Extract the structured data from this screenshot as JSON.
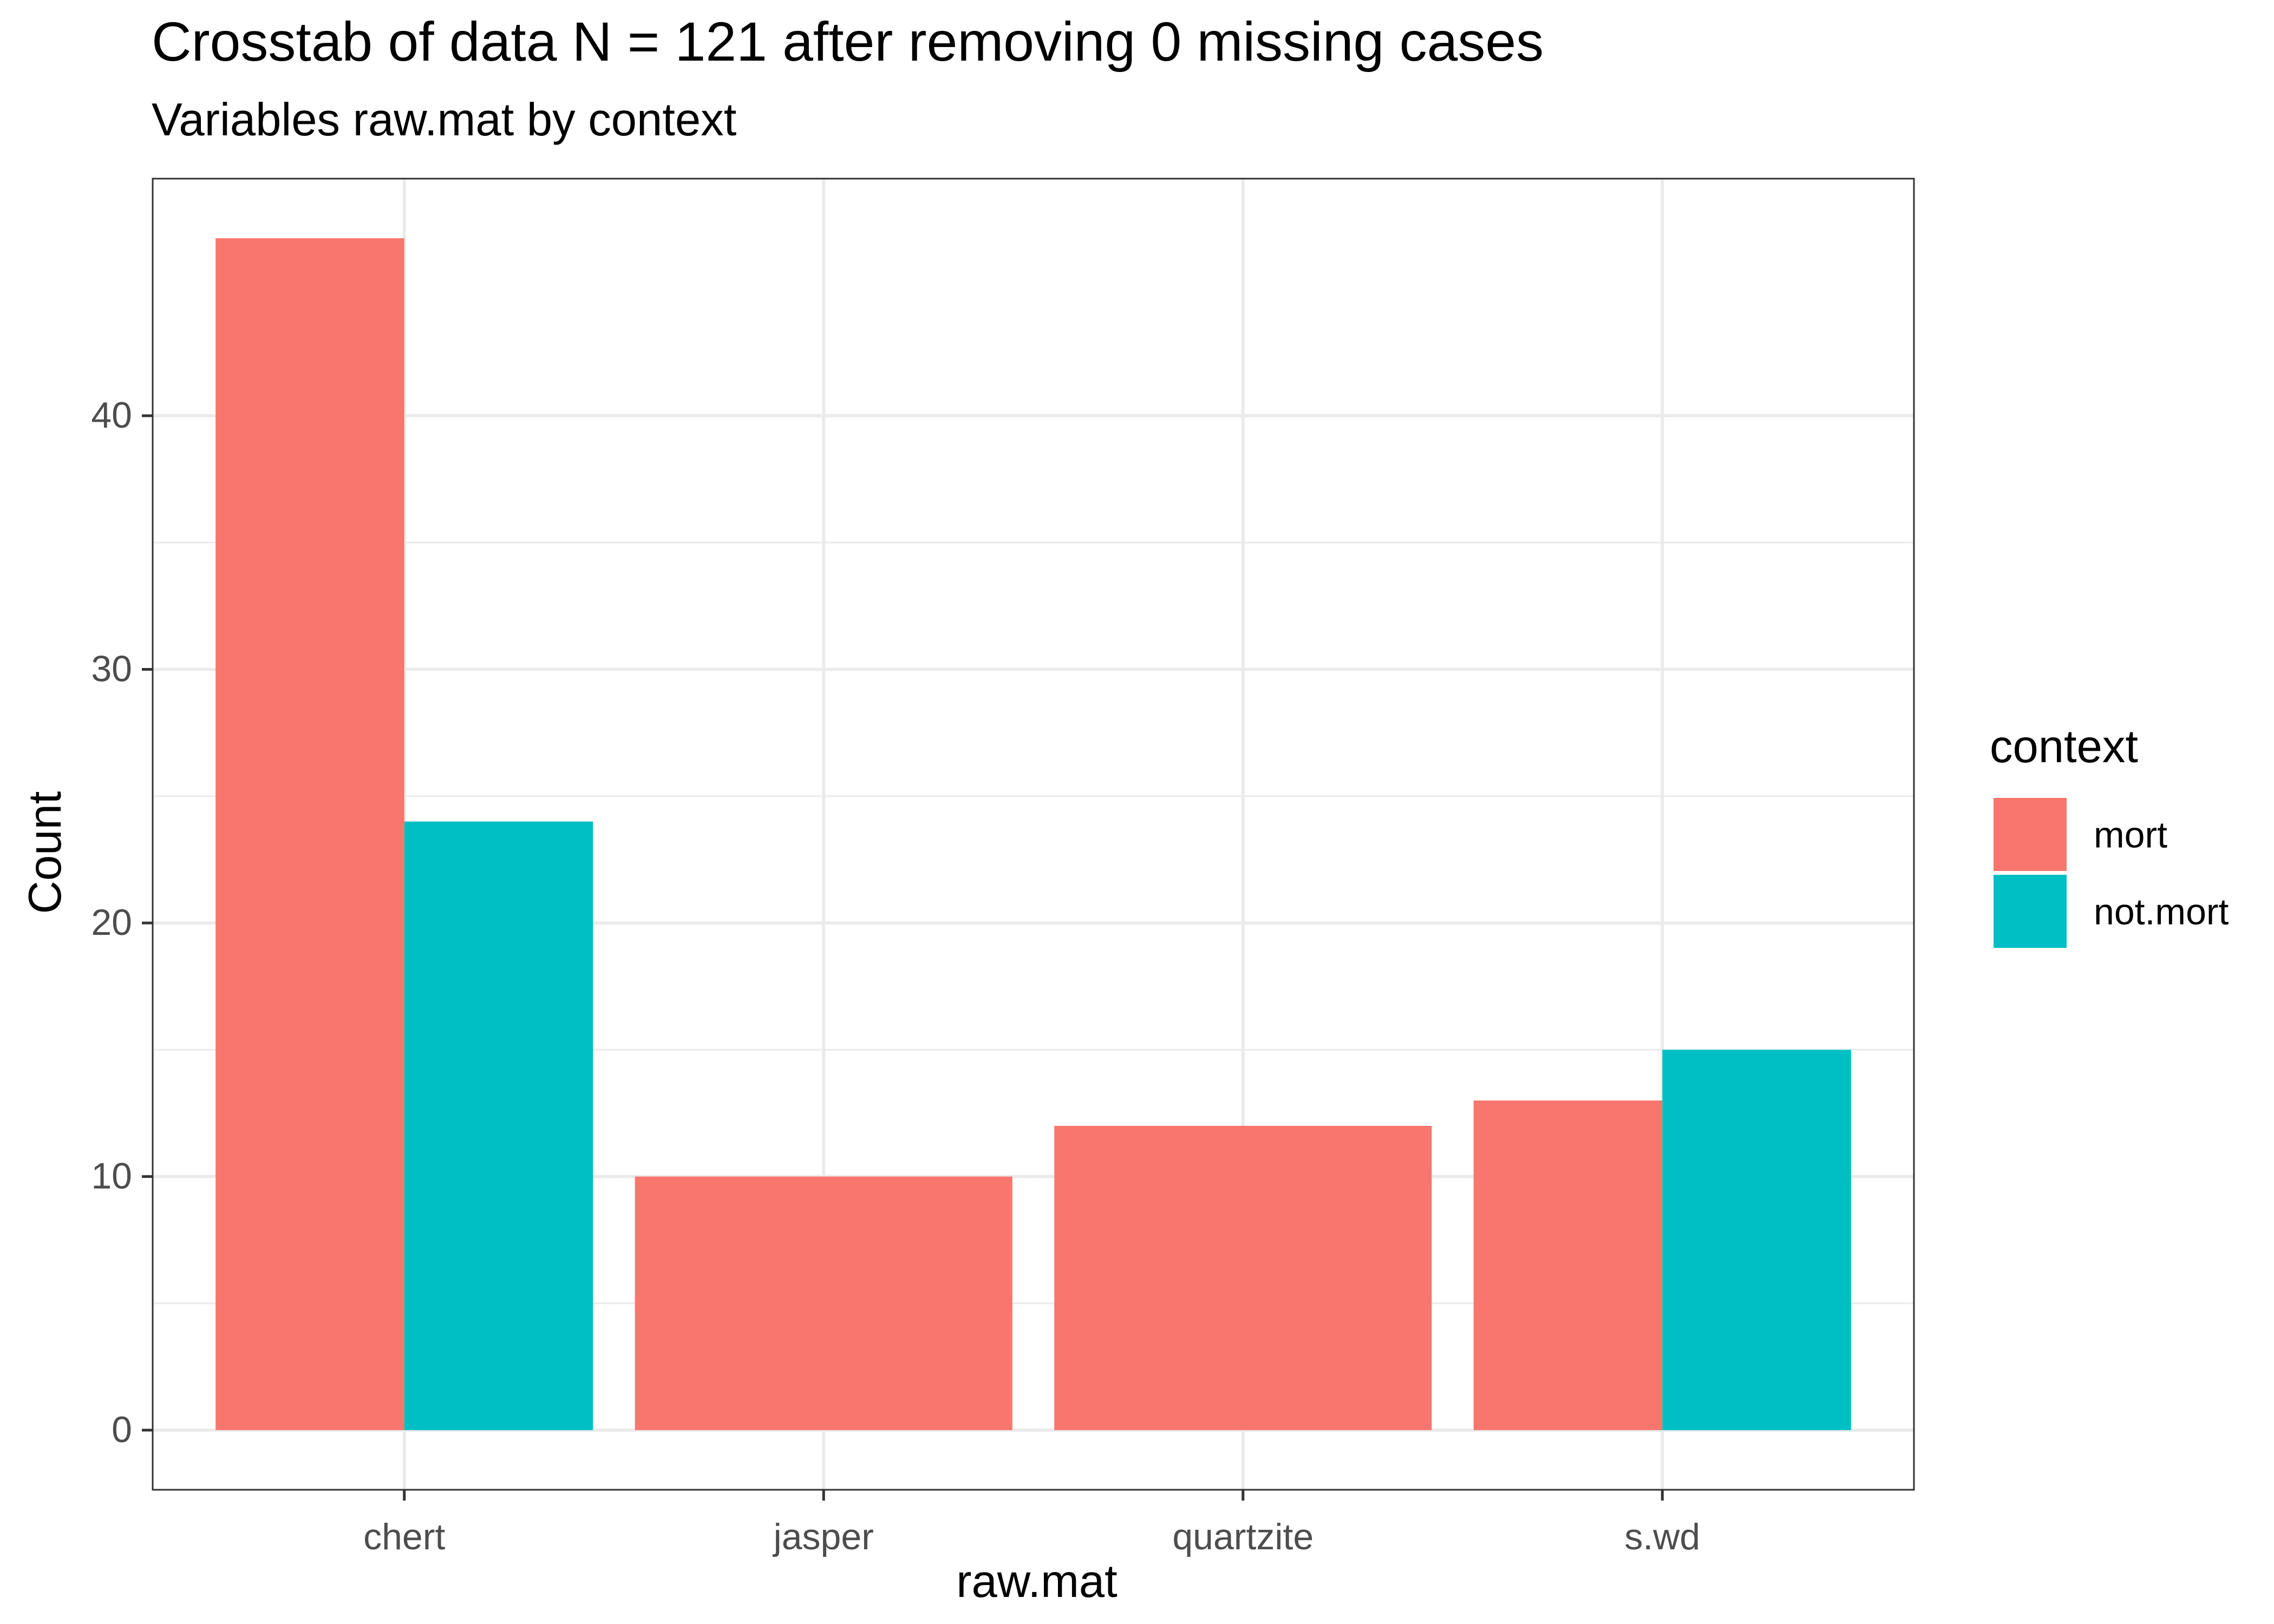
{
  "chart_data": {
    "type": "bar",
    "title": "Crosstab of data N = 121 after removing 0 missing cases",
    "subtitle": "Variables raw.mat by context",
    "xlabel": "raw.mat",
    "ylabel": "Count",
    "categories": [
      "chert",
      "jasper",
      "quartzite",
      "s.wd"
    ],
    "series": [
      {
        "name": "mort",
        "color": "#F8766D",
        "values": [
          47,
          10,
          12,
          13
        ]
      },
      {
        "name": "not.mort",
        "color": "#00BFC4",
        "values": [
          24,
          0,
          0,
          15
        ]
      }
    ],
    "bar_layout": "dodge-preserve-total",
    "ylim": [
      -2.35,
      49.35
    ],
    "yticks": [
      0,
      10,
      20,
      30,
      40
    ],
    "yticks_labels": [
      "0",
      "10",
      "20",
      "30",
      "40"
    ],
    "grid": true,
    "legend": {
      "title": "context",
      "position": "right",
      "entries": [
        "mort",
        "not.mort"
      ]
    }
  }
}
